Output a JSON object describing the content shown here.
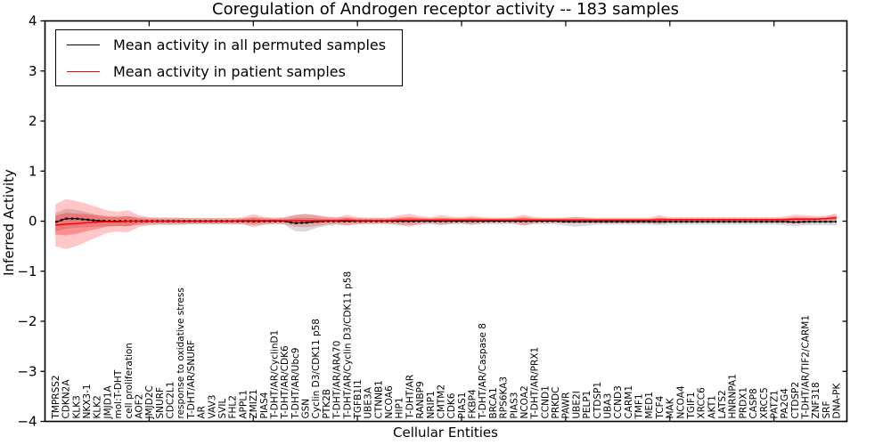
{
  "figure": {
    "title": "Coregulation of Androgen receptor activity -- 183 samples",
    "xlabel": "Cellular Entities",
    "ylabel": "Inferred Activity"
  },
  "legend": {
    "items": [
      {
        "label": "Mean activity in all permuted samples",
        "color": "#000000"
      },
      {
        "label": "Mean activity in patient samples",
        "color": "#ff0000"
      }
    ]
  },
  "chart_data": {
    "type": "line",
    "title": "Coregulation of Androgen receptor activity -- 183 samples",
    "xlabel": "Cellular Entities",
    "ylabel": "Inferred Activity",
    "ylim": [
      -4,
      4
    ],
    "xlim": [
      0,
      77
    ],
    "yticks": [
      -4,
      -3,
      -2,
      -1,
      0,
      1,
      2,
      3,
      4
    ],
    "xticks": [
      10,
      20,
      30,
      40,
      50,
      60,
      70
    ],
    "grid": false,
    "legend_position": "upper left",
    "categories": [
      "TMPRSS2",
      "CDKN2A",
      "KLK3",
      "NKX3-1",
      "KLK2",
      "JMJD1A",
      "mol:T-DHT",
      "cell proliferation",
      "AOF2",
      "JMJD2C",
      "SNURF",
      "CDC2L1",
      "response to oxidative stress",
      "T-DHT/AR/SNURF",
      "AR",
      "VAV3",
      "SVIL",
      "FHL2",
      "APPL1",
      "ZMIZ1",
      "PIAS4",
      "T-DHT/AR/CyclinD1",
      "T-DHT/AR/CDK6",
      "T-DHT/AR/Ubc9",
      "GSN",
      "Cyclin D3/CDK11 p58",
      "PTK2B",
      "T-DHT/AR/ARA70",
      "T-DHT/AR/Cyclin D3/CDK11 p58",
      "TGFB1I1",
      "UBE3A",
      "CTNNB1",
      "NCOA6",
      "HIP1",
      "T-DHT/AR",
      "RANBP9",
      "NRIP1",
      "CMTM2",
      "CDK6",
      "PIAS1",
      "FKBP4",
      "T-DHT/AR/Caspase 8",
      "BRCA1",
      "RPS6KA3",
      "PIAS3",
      "NCOA2",
      "T-DHT/AR/PRX1",
      "CCND1",
      "PRKDC",
      "PAWR",
      "UBE2I",
      "PELP1",
      "CTDSP1",
      "UBA3",
      "CCND3",
      "CARM1",
      "TMF1",
      "MED1",
      "TCF4",
      "MAK",
      "NCOA4",
      "TGIF1",
      "XRCC6",
      "AKT1",
      "LATS2",
      "HNRNPA1",
      "PRDX1",
      "CASP8",
      "XRCC5",
      "PATZ1",
      "PA2G4",
      "CTDSP2",
      "T-DHT/AR/TIF2/CARM1",
      "ZNF318",
      "SRF",
      "DNA-PK"
    ],
    "series": [
      {
        "name": "Mean activity in all permuted samples",
        "color": "#000000",
        "band_color": "#787878",
        "values": [
          -0.02,
          0.05,
          0.05,
          0.03,
          0.01,
          0,
          0,
          0,
          0,
          0,
          0,
          0,
          0,
          0,
          0,
          0,
          0,
          0,
          0,
          0,
          0,
          0,
          0,
          -0.04,
          -0.03,
          -0.01,
          0,
          0,
          0,
          0,
          0,
          0,
          0,
          0,
          0,
          0,
          0,
          0,
          0,
          0,
          0,
          0,
          0,
          0,
          0,
          0,
          0,
          0,
          0,
          -0.01,
          -0.01,
          -0.01,
          -0.01,
          -0.01,
          -0.01,
          -0.01,
          -0.01,
          -0.01,
          -0.01,
          -0.01,
          -0.01,
          -0.01,
          -0.01,
          -0.01,
          -0.01,
          -0.01,
          -0.01,
          -0.01,
          -0.01,
          -0.01,
          -0.01,
          -0.02,
          -0.01,
          -0.01,
          -0.01,
          -0.01
        ],
        "band_halfwidth": [
          0.18,
          0.2,
          0.18,
          0.15,
          0.12,
          0.1,
          0.1,
          0.1,
          0.08,
          0.07,
          0.07,
          0.07,
          0.07,
          0.06,
          0.06,
          0.06,
          0.06,
          0.06,
          0.06,
          0.08,
          0.07,
          0.06,
          0.07,
          0.16,
          0.18,
          0.13,
          0.09,
          0.07,
          0.08,
          0.06,
          0.06,
          0.06,
          0.06,
          0.07,
          0.08,
          0.07,
          0.06,
          0.07,
          0.06,
          0.06,
          0.07,
          0.06,
          0.06,
          0.06,
          0.06,
          0.08,
          0.06,
          0.06,
          0.06,
          0.08,
          0.1,
          0.08,
          0.06,
          0.06,
          0.06,
          0.06,
          0.06,
          0.06,
          0.07,
          0.06,
          0.06,
          0.06,
          0.06,
          0.06,
          0.06,
          0.06,
          0.06,
          0.06,
          0.06,
          0.06,
          0.07,
          0.08,
          0.07,
          0.07,
          0.07,
          0.08
        ]
      },
      {
        "name": "Mean activity in patient samples",
        "color": "#ff0000",
        "band_color": "#ff0000",
        "values": [
          -0.08,
          -0.06,
          -0.05,
          -0.03,
          -0.02,
          -0.01,
          -0.01,
          0,
          0,
          0,
          0,
          0,
          0,
          0,
          0,
          0,
          0,
          0,
          0.01,
          0.01,
          0.01,
          0.01,
          0.01,
          0.01,
          0.01,
          0.01,
          0.01,
          0.01,
          0.02,
          0.01,
          0.01,
          0.01,
          0.01,
          0.02,
          0.02,
          0.02,
          0.02,
          0.02,
          0.02,
          0.02,
          0.02,
          0.02,
          0.02,
          0.02,
          0.02,
          0.02,
          0.02,
          0.02,
          0.02,
          0.02,
          0.02,
          0.02,
          0.02,
          0.02,
          0.02,
          0.02,
          0.02,
          0.02,
          0.03,
          0.03,
          0.03,
          0.03,
          0.03,
          0.03,
          0.03,
          0.03,
          0.03,
          0.03,
          0.03,
          0.03,
          0.03,
          0.04,
          0.04,
          0.04,
          0.05,
          0.07
        ],
        "band_halfwidth": [
          0.42,
          0.5,
          0.45,
          0.38,
          0.3,
          0.22,
          0.2,
          0.22,
          0.12,
          0.08,
          0.07,
          0.07,
          0.07,
          0.06,
          0.06,
          0.06,
          0.06,
          0.06,
          0.07,
          0.13,
          0.08,
          0.06,
          0.07,
          0.12,
          0.13,
          0.11,
          0.08,
          0.07,
          0.11,
          0.07,
          0.06,
          0.06,
          0.06,
          0.1,
          0.13,
          0.08,
          0.06,
          0.1,
          0.07,
          0.06,
          0.09,
          0.06,
          0.05,
          0.05,
          0.06,
          0.11,
          0.06,
          0.05,
          0.05,
          0.05,
          0.06,
          0.05,
          0.05,
          0.05,
          0.05,
          0.05,
          0.05,
          0.05,
          0.09,
          0.05,
          0.05,
          0.05,
          0.05,
          0.05,
          0.05,
          0.05,
          0.05,
          0.05,
          0.05,
          0.05,
          0.06,
          0.09,
          0.08,
          0.06,
          0.06,
          0.09
        ]
      }
    ]
  }
}
